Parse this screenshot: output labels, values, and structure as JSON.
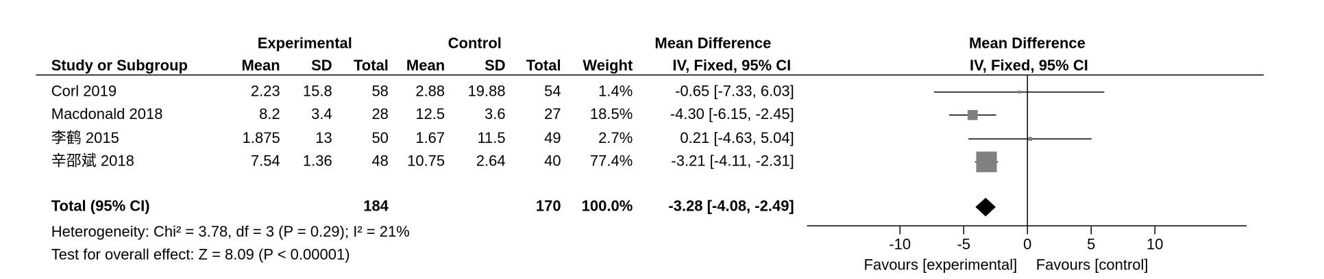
{
  "chart_data": {
    "type": "forest",
    "group_headers": [
      "Experimental",
      "Control",
      "Mean Difference",
      "Mean Difference"
    ],
    "column_headers": [
      "Study or Subgroup",
      "Mean",
      "SD",
      "Total",
      "Mean",
      "SD",
      "Total",
      "Weight",
      "IV, Fixed, 95% CI",
      "IV, Fixed, 95% CI"
    ],
    "categories": [
      "Corl 2019",
      "Macdonald 2018",
      "李鹤 2015",
      "辛邵斌 2018"
    ],
    "table": [
      [
        2.23,
        15.8,
        58,
        2.88,
        19.88,
        54
      ],
      [
        8.2,
        3.4,
        28,
        12.5,
        3.6,
        27
      ],
      [
        1.875,
        13,
        50,
        1.67,
        11.5,
        49
      ],
      [
        7.54,
        1.36,
        48,
        10.75,
        2.64,
        40
      ]
    ],
    "weights": [
      1.4,
      18.5,
      2.7,
      77.4
    ],
    "weight_labels": [
      "1.4%",
      "18.5%",
      "2.7%",
      "77.4%"
    ],
    "values": [
      -0.65,
      -4.3,
      0.21,
      -3.21
    ],
    "ci_low": [
      -7.33,
      -6.15,
      -4.63,
      -4.11
    ],
    "ci_high": [
      6.03,
      -2.45,
      5.04,
      -2.31
    ],
    "value_labels": [
      "-0.65 [-7.33, 6.03]",
      "-4.30 [-6.15, -2.45]",
      "0.21 [-4.63, 5.04]",
      "-3.21 [-4.11, -2.31]"
    ],
    "color": "#808080",
    "total": {
      "label": "Total (95% CI)",
      "exp_total": 184,
      "ctrl_total": 170,
      "weight_label": "100.0%",
      "value": -3.28,
      "ci_low": -4.08,
      "ci_high": -2.49,
      "value_label": "-3.28 [-4.08, -2.49]",
      "color": "#000000"
    },
    "heterogeneity": "Heterogeneity: Chi² = 3.78, df = 3 (P = 0.29); I² = 21%",
    "overall_effect": "Test for overall effect: Z = 8.09 (P < 0.00001)",
    "xlim": [
      -17.3,
      17.2
    ],
    "xticks": [
      -10,
      -5,
      0,
      5,
      10
    ],
    "favours_left": "Favours [experimental]",
    "favours_right": "Favours [control]"
  }
}
